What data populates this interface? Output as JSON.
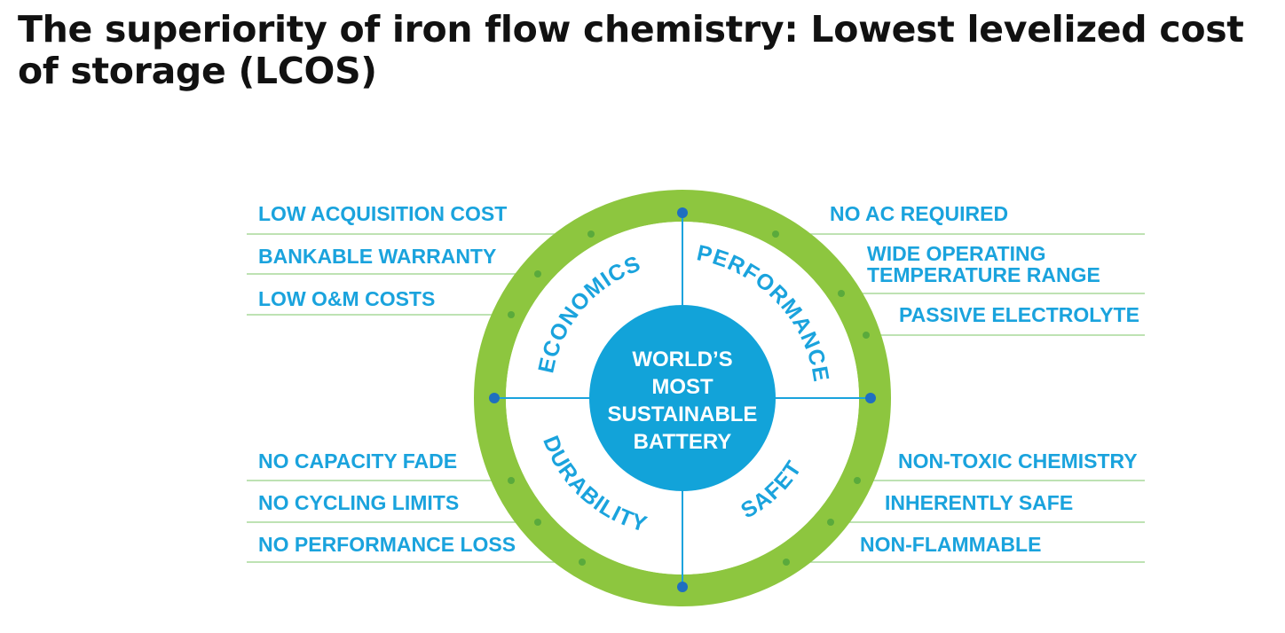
{
  "title": "The superiority of iron flow chemistry: Lowest levelized cost of storage (LCOS)",
  "diagram": {
    "center": {
      "lines": [
        "WORLD’S",
        "MOST",
        "SUSTAINABLE",
        "BATTERY"
      ]
    },
    "quadrants": {
      "economics": {
        "label": "ECONOMICS",
        "items": [
          "LOW ACQUISITION COST",
          "BANKABLE WARRANTY",
          "LOW O&M COSTS"
        ]
      },
      "performance": {
        "label": "PERFORMANCE",
        "items": [
          [
            "NO AC REQUIRED"
          ],
          [
            "WIDE OPERATING",
            "TEMPERATURE RANGE"
          ],
          [
            "PASSIVE ELECTROLYTE"
          ]
        ]
      },
      "durability": {
        "label": "DURABILITY",
        "items": [
          "NO CAPACITY FADE",
          "NO CYCLING LIMITS",
          "NO PERFORMANCE LOSS"
        ]
      },
      "safety": {
        "label": "SAFETY",
        "items": [
          "NON-TOXIC CHEMISTRY",
          "INHERENTLY SAFE",
          "NON-FLAMMABLE"
        ]
      }
    },
    "colors": {
      "ring": "#8dc63f",
      "accent": "#1aa3dd",
      "center_fill": "#12a3d9",
      "leader_line": "#a9d99a",
      "dot_green": "#5aaa3c",
      "dot_blue": "#1f6fc0"
    }
  }
}
